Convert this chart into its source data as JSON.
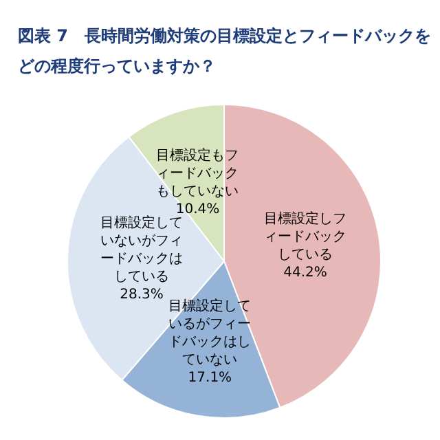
{
  "chart_data": {
    "type": "pie",
    "title": "図表 7　長時間労働対策の目標設定とフィードバックをどの程度行っていますか？",
    "categories": [
      "目標設定しフィードバックしている",
      "目標設定しているがフィードバックはしていない",
      "目標設定していないがフィードバックはしている",
      "目標設定もフィードバックもしていない"
    ],
    "values": [
      44.2,
      17.1,
      28.3,
      10.4
    ],
    "colors": [
      "#e6b9b8",
      "#95b3d7",
      "#dce6f2",
      "#d7e4bd"
    ],
    "value_labels": [
      "44.2%",
      "17.1%",
      "28.3%",
      "10.4%"
    ],
    "legend": false
  }
}
